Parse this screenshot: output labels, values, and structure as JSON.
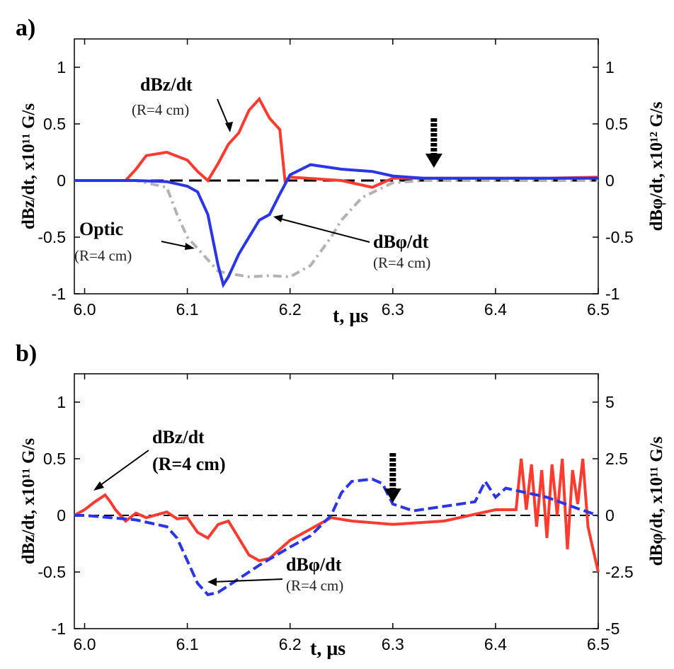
{
  "figure": {
    "colors": {
      "dbz": "#ff3b30",
      "dbphi": "#2b35e8",
      "optic": "#b3b3b3",
      "zero": "#000000"
    }
  },
  "chart_data": [
    {
      "type": "line",
      "panel_label": "a)",
      "xlabel": "t, μs",
      "ylabel_left": "dBz/dt, x10¹¹ G/s",
      "ylabel_right": "dBφ/dt, x10¹² G/s",
      "xlim": [
        5.99,
        6.5
      ],
      "ylim_left": [
        -1,
        1.25
      ],
      "ylim_right": [
        -1,
        1.25
      ],
      "x_ticks": [
        "6.0",
        "6.1",
        "6.2",
        "6.3",
        "6.4",
        "6.5"
      ],
      "x_tick_values": [
        6.0,
        6.1,
        6.2,
        6.3,
        6.4,
        6.5
      ],
      "y_ticks_left": [
        "1",
        "0.5",
        "0",
        "-0.5",
        "-1"
      ],
      "y_tick_values_left": [
        1,
        0.5,
        0,
        -0.5,
        -1
      ],
      "y_ticks_right": [
        "1",
        "0.5",
        "0",
        "-0.5",
        "-1"
      ],
      "y_tick_values_right": [
        1,
        0.5,
        0,
        -0.5,
        -1
      ],
      "series": [
        {
          "name": "dBz/dt (R=4 cm)",
          "axis": "left",
          "color": "#ff3b30",
          "style": "solid",
          "x": [
            5.99,
            6.04,
            6.05,
            6.06,
            6.08,
            6.1,
            6.11,
            6.12,
            6.13,
            6.14,
            6.15,
            6.16,
            6.17,
            6.18,
            6.19,
            6.195,
            6.2,
            6.25,
            6.28,
            6.3,
            6.35,
            6.4,
            6.45,
            6.5
          ],
          "y": [
            0,
            0,
            0.1,
            0.22,
            0.25,
            0.18,
            0.08,
            0.0,
            0.15,
            0.32,
            0.42,
            0.62,
            0.72,
            0.55,
            0.45,
            0.0,
            0.03,
            0.0,
            -0.06,
            0.02,
            0.02,
            0.02,
            0.02,
            0.03
          ]
        },
        {
          "name": "dBφ/dt (R=4 cm)",
          "axis": "right",
          "color": "#2b35e8",
          "style": "solid",
          "x": [
            5.99,
            6.05,
            6.08,
            6.1,
            6.11,
            6.12,
            6.13,
            6.135,
            6.14,
            6.15,
            6.16,
            6.17,
            6.18,
            6.19,
            6.2,
            6.22,
            6.25,
            6.28,
            6.3,
            6.33,
            6.4,
            6.5
          ],
          "y": [
            0,
            0,
            -0.01,
            -0.05,
            -0.1,
            -0.3,
            -0.75,
            -0.92,
            -0.85,
            -0.65,
            -0.5,
            -0.35,
            -0.3,
            -0.12,
            0.05,
            0.14,
            0.1,
            0.08,
            0.04,
            0.02,
            0.02,
            0.02
          ]
        },
        {
          "name": "Optic (R=4 cm)",
          "axis": "left",
          "color": "#b3b3b3",
          "style": "dash",
          "x": [
            5.99,
            6.05,
            6.08,
            6.09,
            6.1,
            6.11,
            6.12,
            6.13,
            6.14,
            6.16,
            6.18,
            6.2,
            6.22,
            6.24,
            6.25,
            6.27,
            6.3,
            6.33,
            6.4,
            6.5
          ],
          "y": [
            0,
            0,
            -0.06,
            -0.3,
            -0.5,
            -0.6,
            -0.7,
            -0.8,
            -0.82,
            -0.85,
            -0.84,
            -0.85,
            -0.75,
            -0.5,
            -0.35,
            -0.15,
            -0.02,
            0.0,
            0.0,
            0.0
          ]
        }
      ],
      "annotations": {
        "dbz_label": "dBz/dt",
        "dbz_sub": "(R=4 cm)",
        "optic_label": "Optic",
        "optic_sub": "(R=4 cm)",
        "dbphi_label": "dBφ/dt",
        "dbphi_sub": "(R=4 cm)",
        "marker_arrow_x": 6.34
      }
    },
    {
      "type": "line",
      "panel_label": "b)",
      "xlabel": "t, μs",
      "ylabel_left": "dBz/dt, x10¹¹ G/s",
      "ylabel_right": "dBφ/dt, x10¹¹ G/s",
      "xlim": [
        5.99,
        6.5
      ],
      "ylim_left": [
        -1,
        1.25
      ],
      "ylim_right": [
        -5,
        6.25
      ],
      "x_ticks": [
        "6.0",
        "6.1",
        "6.2",
        "6.3",
        "6.4",
        "6.5"
      ],
      "x_tick_values": [
        6.0,
        6.1,
        6.2,
        6.3,
        6.4,
        6.5
      ],
      "y_ticks_left": [
        "1",
        "0.5",
        "0",
        "-0.5",
        "-1"
      ],
      "y_tick_values_left": [
        1,
        0.5,
        0,
        -0.5,
        -1
      ],
      "y_ticks_right": [
        "5",
        "2.5",
        "0",
        "-2.5",
        "-5"
      ],
      "y_tick_values_right": [
        5,
        2.5,
        0,
        -2.5,
        -5
      ],
      "series": [
        {
          "name": "dBz/dt (R=4 cm)",
          "axis": "left",
          "color": "#ff3b30",
          "style": "solid",
          "x": [
            5.99,
            6.0,
            6.01,
            6.02,
            6.025,
            6.03,
            6.04,
            6.05,
            6.06,
            6.08,
            6.09,
            6.1,
            6.11,
            6.12,
            6.13,
            6.14,
            6.15,
            6.16,
            6.17,
            6.18,
            6.2,
            6.22,
            6.24,
            6.26,
            6.3,
            6.35,
            6.4,
            6.42,
            6.425,
            6.43,
            6.435,
            6.44,
            6.445,
            6.45,
            6.455,
            6.46,
            6.465,
            6.47,
            6.475,
            6.48,
            6.485,
            6.49,
            6.495,
            6.5
          ],
          "y": [
            0,
            0.05,
            0.12,
            0.18,
            0.12,
            0.05,
            -0.05,
            0.02,
            -0.02,
            0.03,
            -0.03,
            -0.02,
            -0.15,
            -0.2,
            -0.08,
            -0.05,
            -0.2,
            -0.35,
            -0.4,
            -0.38,
            -0.22,
            -0.12,
            -0.02,
            -0.05,
            -0.08,
            -0.05,
            0.05,
            0.05,
            0.5,
            0.05,
            0.45,
            -0.1,
            0.4,
            -0.2,
            0.45,
            0.0,
            0.5,
            -0.3,
            0.4,
            0.1,
            0.5,
            -0.1,
            -0.3,
            -0.5
          ]
        },
        {
          "name": "dBφ/dt (R=4 cm)",
          "axis": "right",
          "color": "#2b35e8",
          "style": "dash",
          "x": [
            5.99,
            6.0,
            6.05,
            6.08,
            6.09,
            6.1,
            6.11,
            6.12,
            6.13,
            6.15,
            6.17,
            6.2,
            6.22,
            6.24,
            6.25,
            6.26,
            6.28,
            6.29,
            6.3,
            6.32,
            6.35,
            6.38,
            6.39,
            6.4,
            6.41,
            6.43,
            6.45,
            6.48,
            6.5
          ],
          "y": [
            0,
            0,
            -0.2,
            -0.5,
            -1.0,
            -2.0,
            -3.0,
            -3.5,
            -3.4,
            -2.8,
            -2.2,
            -1.4,
            -0.9,
            0.0,
            1.0,
            1.5,
            1.6,
            1.4,
            0.5,
            0.2,
            0.4,
            0.6,
            1.5,
            0.8,
            1.2,
            1.0,
            0.8,
            0.3,
            0.0
          ]
        }
      ],
      "annotations": {
        "dbz_label": "dBz/dt",
        "dbz_sub": "(R=4 cm)",
        "dbphi_label": "dBφ/dt",
        "dbphi_sub": "(R=4 cm)",
        "marker_arrow_x": 6.3
      }
    }
  ]
}
